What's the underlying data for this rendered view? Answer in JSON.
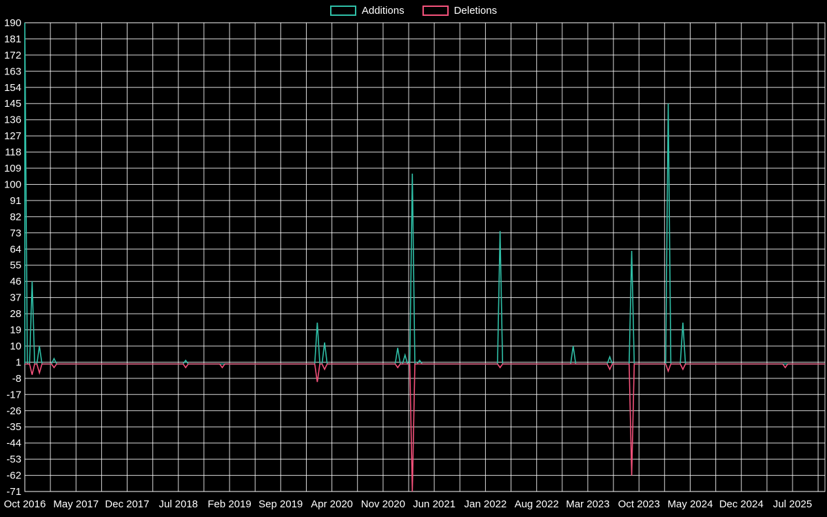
{
  "chart_data": {
    "type": "line",
    "title": "",
    "legend": [
      {
        "label": "Additions",
        "color": "#2fbfa7"
      },
      {
        "label": "Deletions",
        "color": "#f4527b"
      }
    ],
    "legend_position": "top-center",
    "grid": true,
    "ylim": [
      -71,
      190
    ],
    "y_tick_step": 9,
    "y_ticks": [
      190,
      181,
      172,
      163,
      154,
      145,
      136,
      127,
      118,
      109,
      100,
      91,
      82,
      73,
      64,
      55,
      46,
      37,
      28,
      19,
      10,
      1,
      -8,
      -17,
      -26,
      -35,
      -44,
      -53,
      -62,
      -71
    ],
    "x_labels": [
      "Oct 2016",
      "May 2017",
      "Dec 2017",
      "Jul 2018",
      "Feb 2019",
      "Sep 2019",
      "Apr 2020",
      "Nov 2020",
      "Jun 2021",
      "Jan 2022",
      "Aug 2022",
      "Mar 2023",
      "Oct 2023",
      "May 2024",
      "Dec 2024",
      "Jul 2025"
    ],
    "months_per_label": 7,
    "baseline": 0,
    "series": [
      {
        "name": "Additions",
        "color": "#2fbfa7",
        "spikes": [
          {
            "month": 0,
            "value": 190
          },
          {
            "month": 1,
            "value": 46
          },
          {
            "month": 2,
            "value": 10
          },
          {
            "month": 4,
            "value": 3
          },
          {
            "month": 22,
            "value": 2
          },
          {
            "month": 40,
            "value": 23
          },
          {
            "month": 41,
            "value": 12
          },
          {
            "month": 51,
            "value": 9
          },
          {
            "month": 52,
            "value": 5
          },
          {
            "month": 53,
            "value": 106
          },
          {
            "month": 54,
            "value": 2
          },
          {
            "month": 65,
            "value": 74
          },
          {
            "month": 75,
            "value": 10
          },
          {
            "month": 80,
            "value": 4
          },
          {
            "month": 83,
            "value": 63
          },
          {
            "month": 88,
            "value": 145
          },
          {
            "month": 90,
            "value": 23
          }
        ]
      },
      {
        "name": "Deletions",
        "color": "#f4527b",
        "spikes": [
          {
            "month": 1,
            "value": -6
          },
          {
            "month": 2,
            "value": -5
          },
          {
            "month": 4,
            "value": -2
          },
          {
            "month": 22,
            "value": -2
          },
          {
            "month": 27,
            "value": -2
          },
          {
            "month": 40,
            "value": -10
          },
          {
            "month": 41,
            "value": -3
          },
          {
            "month": 51,
            "value": -2
          },
          {
            "month": 53,
            "value": -71
          },
          {
            "month": 65,
            "value": -2
          },
          {
            "month": 80,
            "value": -3
          },
          {
            "month": 83,
            "value": -62
          },
          {
            "month": 88,
            "value": -4
          },
          {
            "month": 90,
            "value": -3
          },
          {
            "month": 104,
            "value": -2
          }
        ]
      }
    ]
  },
  "colors": {
    "background": "#000000",
    "grid": "#ffffff",
    "text": "#ffffff",
    "additions": "#2fbfa7",
    "deletions": "#f4527b"
  }
}
